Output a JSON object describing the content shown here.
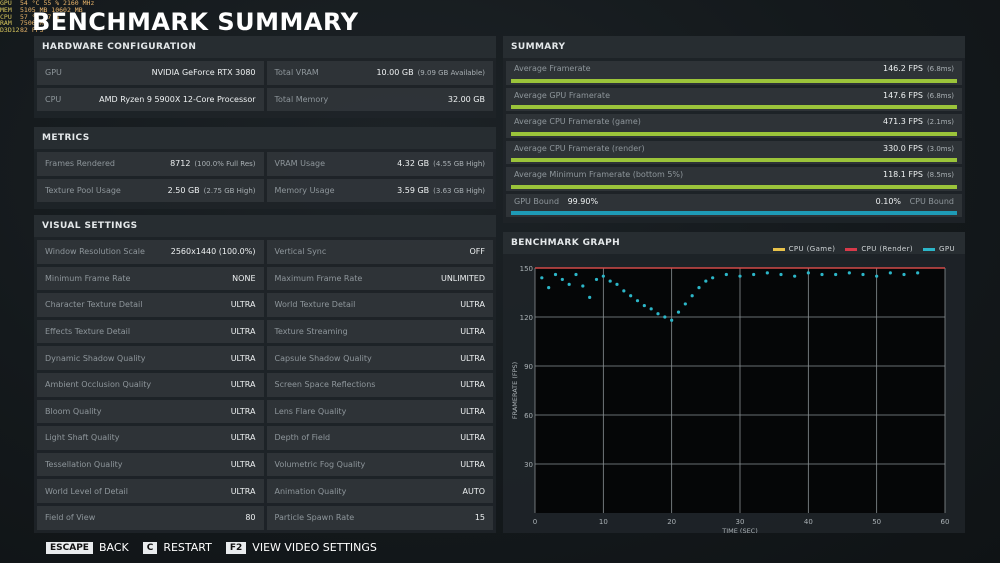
{
  "overlay": [
    {
      "k": "GPU",
      "v": "54 °C   55 %   2160 MHz"
    },
    {
      "k": "MEM",
      "v": "5105 MB   10602 MB"
    },
    {
      "k": "CPU",
      "v": "57 °C   47 %"
    },
    {
      "k": "RAM",
      "v": "7506 MB"
    },
    {
      "k": "D3D12",
      "v": "82 FPS"
    }
  ],
  "title": "BENCHMARK SUMMARY",
  "hardware": {
    "heading": "HARDWARE CONFIGURATION",
    "rows": [
      [
        {
          "label": "GPU",
          "value": "NVIDIA GeForce RTX 3080",
          "sub": ""
        },
        {
          "label": "Total VRAM",
          "value": "10.00 GB",
          "sub": "(9.09 GB Available)"
        }
      ],
      [
        {
          "label": "CPU",
          "value": "AMD Ryzen 9 5900X 12-Core Processor",
          "sub": ""
        },
        {
          "label": "Total Memory",
          "value": "32.00 GB",
          "sub": ""
        }
      ]
    ]
  },
  "metrics": {
    "heading": "METRICS",
    "rows": [
      [
        {
          "label": "Frames Rendered",
          "value": "8712",
          "sub": "(100.0% Full Res)"
        },
        {
          "label": "VRAM Usage",
          "value": "4.32 GB",
          "sub": "(4.55 GB High)"
        }
      ],
      [
        {
          "label": "Texture Pool Usage",
          "value": "2.50 GB",
          "sub": "(2.75 GB High)"
        },
        {
          "label": "Memory Usage",
          "value": "3.59 GB",
          "sub": "(3.63 GB High)"
        }
      ]
    ]
  },
  "visual": {
    "heading": "VISUAL SETTINGS",
    "rows": [
      [
        {
          "label": "Window Resolution Scale",
          "value": "2560x1440 (100.0%)",
          "sub": ""
        },
        {
          "label": "Vertical Sync",
          "value": "OFF",
          "sub": ""
        }
      ],
      [
        {
          "label": "Minimum Frame Rate",
          "value": "NONE",
          "sub": ""
        },
        {
          "label": "Maximum Frame Rate",
          "value": "UNLIMITED",
          "sub": ""
        }
      ],
      [
        {
          "label": "Character Texture Detail",
          "value": "ULTRA",
          "sub": ""
        },
        {
          "label": "World Texture Detail",
          "value": "ULTRA",
          "sub": ""
        }
      ],
      [
        {
          "label": "Effects Texture Detail",
          "value": "ULTRA",
          "sub": ""
        },
        {
          "label": "Texture Streaming",
          "value": "ULTRA",
          "sub": ""
        }
      ],
      [
        {
          "label": "Dynamic Shadow Quality",
          "value": "ULTRA",
          "sub": ""
        },
        {
          "label": "Capsule Shadow Quality",
          "value": "ULTRA",
          "sub": ""
        }
      ],
      [
        {
          "label": "Ambient Occlusion Quality",
          "value": "ULTRA",
          "sub": ""
        },
        {
          "label": "Screen Space Reflections",
          "value": "ULTRA",
          "sub": ""
        }
      ],
      [
        {
          "label": "Bloom Quality",
          "value": "ULTRA",
          "sub": ""
        },
        {
          "label": "Lens Flare Quality",
          "value": "ULTRA",
          "sub": ""
        }
      ],
      [
        {
          "label": "Light Shaft Quality",
          "value": "ULTRA",
          "sub": ""
        },
        {
          "label": "Depth of Field",
          "value": "ULTRA",
          "sub": ""
        }
      ],
      [
        {
          "label": "Tessellation Quality",
          "value": "ULTRA",
          "sub": ""
        },
        {
          "label": "Volumetric Fog Quality",
          "value": "ULTRA",
          "sub": ""
        }
      ],
      [
        {
          "label": "World Level of Detail",
          "value": "ULTRA",
          "sub": ""
        },
        {
          "label": "Animation Quality",
          "value": "AUTO",
          "sub": ""
        }
      ],
      [
        {
          "label": "Field of View",
          "value": "80",
          "sub": ""
        },
        {
          "label": "Particle Spawn Rate",
          "value": "15",
          "sub": ""
        }
      ]
    ]
  },
  "summary": {
    "heading": "SUMMARY",
    "rows": [
      {
        "label": "Average Framerate",
        "value": "146.2 FPS",
        "sub": "(6.8ms)",
        "fill": 1.0,
        "color": "#9bc43a"
      },
      {
        "label": "Average GPU Framerate",
        "value": "147.6 FPS",
        "sub": "(6.8ms)",
        "fill": 1.0,
        "color": "#9bc43a"
      },
      {
        "label": "Average CPU Framerate (game)",
        "value": "471.3 FPS",
        "sub": "(2.1ms)",
        "fill": 1.0,
        "color": "#9bc43a"
      },
      {
        "label": "Average CPU Framerate (render)",
        "value": "330.0 FPS",
        "sub": "(3.0ms)",
        "fill": 1.0,
        "color": "#9bc43a"
      },
      {
        "label": "Average Minimum Framerate (bottom 5%)",
        "value": "118.1 FPS",
        "sub": "(8.5ms)",
        "fill": 1.0,
        "color": "#9bc43a"
      }
    ],
    "bound": {
      "left_label": "GPU Bound",
      "left_value": "99.90%",
      "right_value": "0.10%",
      "right_label": "CPU Bound",
      "fill": 0.999,
      "color": "#1e9ab6"
    }
  },
  "graph": {
    "heading": "BENCHMARK GRAPH",
    "legend": [
      {
        "name": "CPU (Game)",
        "color": "#e8c24a"
      },
      {
        "name": "CPU (Render)",
        "color": "#d83a4a"
      },
      {
        "name": "GPU",
        "color": "#2cb6c8"
      }
    ]
  },
  "chart_data": {
    "type": "scatter",
    "title": "BENCHMARK GRAPH",
    "xlabel": "TIME (SEC)",
    "ylabel": "FRAMERATE (FPS)",
    "xlim": [
      0,
      60
    ],
    "ylim": [
      0,
      150
    ],
    "xticks": [
      0,
      10,
      20,
      30,
      40,
      50,
      60
    ],
    "yticks": [
      30,
      60,
      90,
      120,
      150
    ],
    "grid": true,
    "legend_position": "top-right",
    "series": [
      {
        "name": "CPU (Game)",
        "color": "#e8c24a",
        "x": [
          0,
          60
        ],
        "y": [
          150,
          150
        ]
      },
      {
        "name": "CPU (Render)",
        "color": "#d83a4a",
        "x": [
          0,
          60
        ],
        "y": [
          150,
          150
        ]
      },
      {
        "name": "GPU",
        "color": "#2cb6c8",
        "x": [
          1,
          2,
          3,
          4,
          5,
          6,
          7,
          8,
          9,
          10,
          11,
          12,
          13,
          14,
          15,
          16,
          17,
          18,
          19,
          20,
          21,
          22,
          23,
          24,
          25,
          26,
          28,
          30,
          32,
          34,
          36,
          38,
          40,
          42,
          44,
          46,
          48,
          50,
          52,
          54,
          56
        ],
        "y": [
          144,
          138,
          146,
          143,
          140,
          146,
          139,
          132,
          143,
          145,
          142,
          140,
          136,
          133,
          130,
          127,
          125,
          122,
          120,
          118,
          123,
          128,
          133,
          138,
          142,
          144,
          146,
          145,
          146,
          147,
          146,
          145,
          147,
          146,
          146,
          147,
          146,
          145,
          147,
          146,
          147
        ]
      }
    ]
  },
  "footer": [
    {
      "key": "ESCAPE",
      "label": "BACK"
    },
    {
      "key": "C",
      "label": "RESTART"
    },
    {
      "key": "F2",
      "label": "VIEW VIDEO SETTINGS"
    }
  ]
}
